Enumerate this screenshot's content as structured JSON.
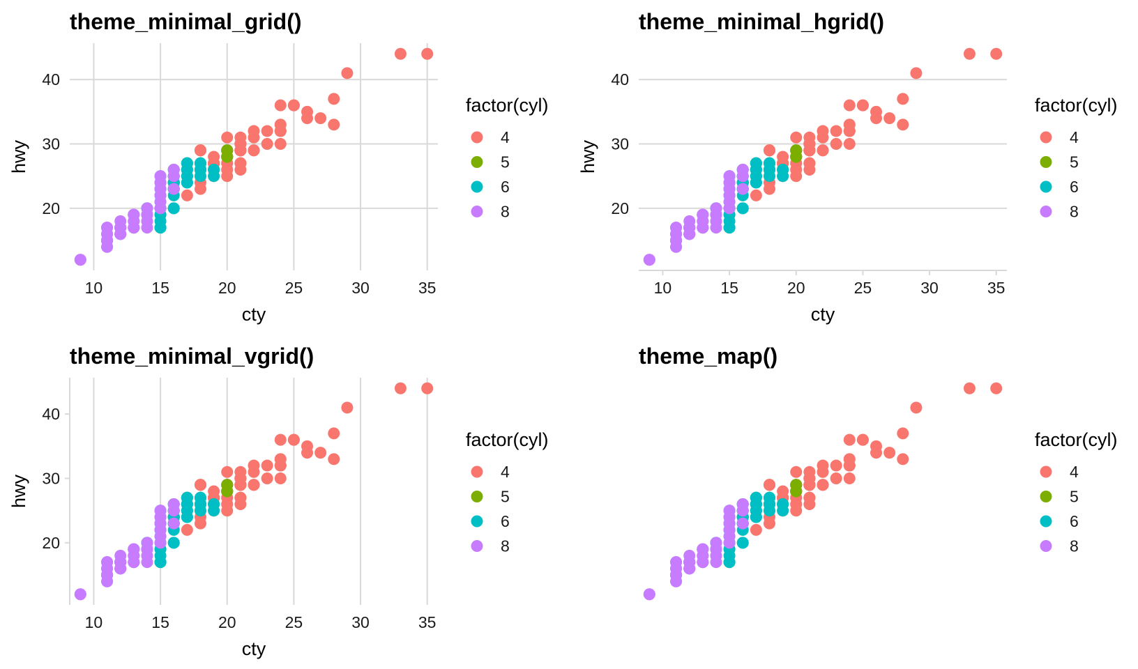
{
  "chart_data": [
    {
      "type": "scatter",
      "title": "theme_minimal_grid()",
      "xlabel": "cty",
      "ylabel": "hwy",
      "xlim": [
        8.2,
        35.8
      ],
      "ylim": [
        10.35,
        45.65
      ],
      "x_ticks": [
        "10",
        "15",
        "20",
        "25",
        "30",
        "35"
      ],
      "y_ticks": [
        "20",
        "30",
        "40"
      ],
      "grid": "both",
      "axis_lines": "none",
      "legend": {
        "title": "factor(cyl)",
        "position": "right"
      },
      "dataset": "mpg"
    },
    {
      "type": "scatter",
      "title": "theme_minimal_hgrid()",
      "xlabel": "cty",
      "ylabel": "hwy",
      "xlim": [
        8.2,
        35.8
      ],
      "ylim": [
        10.35,
        45.65
      ],
      "x_ticks": [
        "10",
        "15",
        "20",
        "25",
        "30",
        "35"
      ],
      "y_ticks": [
        "20",
        "30",
        "40"
      ],
      "grid": "horizontal",
      "axis_lines": "x",
      "legend": {
        "title": "factor(cyl)",
        "position": "right"
      },
      "dataset": "mpg"
    },
    {
      "type": "scatter",
      "title": "theme_minimal_vgrid()",
      "xlabel": "cty",
      "ylabel": "hwy",
      "xlim": [
        8.2,
        35.8
      ],
      "ylim": [
        10.35,
        45.65
      ],
      "x_ticks": [
        "10",
        "15",
        "20",
        "25",
        "30",
        "35"
      ],
      "y_ticks": [
        "20",
        "30",
        "40"
      ],
      "grid": "vertical",
      "axis_lines": "y",
      "legend": {
        "title": "factor(cyl)",
        "position": "right"
      },
      "dataset": "mpg"
    },
    {
      "type": "scatter",
      "title": "theme_map()",
      "xlabel": "",
      "ylabel": "",
      "xlim": [
        8.2,
        35.8
      ],
      "ylim": [
        10.35,
        45.65
      ],
      "x_ticks": [],
      "y_ticks": [],
      "grid": "none",
      "axis_lines": "none",
      "legend": {
        "title": "factor(cyl)",
        "position": "right"
      },
      "dataset": "mpg"
    }
  ],
  "legend_items": [
    {
      "label": "4",
      "color": "#F8766D"
    },
    {
      "label": "5",
      "color": "#7CAE00"
    },
    {
      "label": "6",
      "color": "#00BFC4"
    },
    {
      "label": "8",
      "color": "#C77CFF"
    }
  ],
  "mpg": {
    "series": [
      {
        "name": "4",
        "color": "#F8766D",
        "points": [
          [
            18,
            29
          ],
          [
            21,
            29
          ],
          [
            20,
            31
          ],
          [
            21,
            30
          ],
          [
            18,
            26
          ],
          [
            16,
            25
          ],
          [
            20,
            28
          ],
          [
            19,
            27
          ],
          [
            19,
            27
          ],
          [
            22,
            29
          ],
          [
            21,
            30
          ],
          [
            20,
            29
          ],
          [
            21,
            29
          ],
          [
            20,
            28
          ],
          [
            19,
            26
          ],
          [
            18,
            25
          ],
          [
            21,
            27
          ],
          [
            21,
            27
          ],
          [
            21,
            29
          ],
          [
            21,
            30
          ],
          [
            20,
            29
          ],
          [
            18,
            26
          ],
          [
            18,
            29
          ],
          [
            21,
            29
          ],
          [
            21,
            29
          ],
          [
            24,
            36
          ],
          [
            25,
            36
          ],
          [
            28,
            33
          ],
          [
            27,
            34
          ],
          [
            24,
            32
          ],
          [
            21,
            26
          ],
          [
            21,
            29
          ],
          [
            21,
            29
          ],
          [
            24,
            30
          ],
          [
            26,
            35
          ],
          [
            24,
            33
          ],
          [
            26,
            34
          ],
          [
            28,
            37
          ],
          [
            29,
            41
          ],
          [
            33,
            44
          ],
          [
            35,
            44
          ],
          [
            24,
            32
          ],
          [
            22,
            29
          ],
          [
            21,
            29
          ],
          [
            21,
            29
          ],
          [
            21,
            30
          ],
          [
            24,
            33
          ],
          [
            23,
            32
          ],
          [
            23,
            30
          ],
          [
            24,
            32
          ],
          [
            20,
            26
          ],
          [
            20,
            27
          ],
          [
            20,
            29
          ],
          [
            20,
            26
          ],
          [
            18,
            24
          ],
          [
            19,
            26
          ],
          [
            19,
            27
          ],
          [
            19,
            26
          ],
          [
            21,
            27
          ],
          [
            19,
            26
          ],
          [
            19,
            25
          ],
          [
            18,
            26
          ],
          [
            21,
            29
          ],
          [
            19,
            27
          ],
          [
            25,
            36
          ],
          [
            22,
            29
          ],
          [
            21,
            30
          ],
          [
            21,
            31
          ],
          [
            18,
            29
          ],
          [
            19,
            28
          ],
          [
            22,
            31
          ],
          [
            18,
            27
          ],
          [
            18,
            29
          ],
          [
            22,
            32
          ],
          [
            21,
            29
          ],
          [
            21,
            30
          ],
          [
            20,
            28
          ],
          [
            15,
            20
          ],
          [
            17,
            22
          ],
          [
            20,
            28
          ],
          [
            19,
            27
          ],
          [
            15,
            20
          ],
          [
            20,
            25
          ],
          [
            20,
            28
          ],
          [
            20,
            27
          ],
          [
            18,
            23
          ],
          [
            19,
            26
          ],
          [
            19,
            26
          ],
          [
            19,
            27
          ],
          [
            20,
            29
          ],
          [
            21,
            29
          ]
        ]
      },
      {
        "name": "5",
        "color": "#7CAE00",
        "points": [
          [
            20,
            28
          ],
          [
            20,
            29
          ],
          [
            20,
            28
          ],
          [
            20,
            29
          ]
        ]
      },
      {
        "name": "6",
        "color": "#00BFC4",
        "points": [
          [
            16,
            26
          ],
          [
            17,
            25
          ],
          [
            15,
            23
          ],
          [
            16,
            24
          ],
          [
            15,
            25
          ],
          [
            15,
            21
          ],
          [
            15,
            22
          ],
          [
            16,
            23
          ],
          [
            17,
            26
          ],
          [
            17,
            25
          ],
          [
            17,
            27
          ],
          [
            18,
            26
          ],
          [
            19,
            26
          ],
          [
            19,
            25
          ],
          [
            18,
            27
          ],
          [
            16,
            26
          ],
          [
            18,
            26
          ],
          [
            16,
            25
          ],
          [
            16,
            24
          ],
          [
            17,
            26
          ],
          [
            16,
            20
          ],
          [
            15,
            20
          ],
          [
            14,
            20
          ],
          [
            15,
            19
          ],
          [
            15,
            17
          ],
          [
            15,
            17
          ],
          [
            15,
            18
          ],
          [
            14,
            20
          ],
          [
            16,
            23
          ],
          [
            16,
            24
          ],
          [
            17,
            24
          ],
          [
            17,
            24
          ],
          [
            18,
            26
          ],
          [
            16,
            25
          ],
          [
            16,
            22
          ],
          [
            16,
            25
          ],
          [
            17,
            27
          ],
          [
            17,
            26
          ],
          [
            18,
            27
          ],
          [
            19,
            26
          ],
          [
            18,
            26
          ],
          [
            17,
            26
          ],
          [
            16,
            23
          ],
          [
            16,
            24
          ],
          [
            18,
            26
          ],
          [
            16,
            24
          ],
          [
            17,
            27
          ],
          [
            17,
            25
          ],
          [
            16,
            24
          ],
          [
            17,
            25
          ],
          [
            16,
            24
          ],
          [
            18,
            27
          ],
          [
            18,
            26
          ],
          [
            16,
            24
          ],
          [
            17,
            26
          ],
          [
            17,
            24
          ],
          [
            16,
            23
          ],
          [
            15,
            22
          ],
          [
            16,
            24
          ],
          [
            17,
            25
          ],
          [
            18,
            26
          ],
          [
            17,
            27
          ],
          [
            15,
            24
          ],
          [
            15,
            22
          ],
          [
            15,
            23
          ],
          [
            16,
            24
          ],
          [
            18,
            25
          ],
          [
            17,
            26
          ],
          [
            16,
            24
          ],
          [
            15,
            23
          ],
          [
            16,
            26
          ],
          [
            16,
            23
          ],
          [
            17,
            27
          ],
          [
            17,
            26
          ],
          [
            15,
            17
          ],
          [
            16,
            20
          ],
          [
            15,
            19
          ],
          [
            14,
            19
          ]
        ]
      },
      {
        "name": "8",
        "color": "#C77CFF",
        "points": [
          [
            16,
            26
          ],
          [
            15,
            25
          ],
          [
            16,
            26
          ],
          [
            15,
            23
          ],
          [
            11,
            15
          ],
          [
            11,
            14
          ],
          [
            11,
            15
          ],
          [
            12,
            16
          ],
          [
            9,
            12
          ],
          [
            11,
            17
          ],
          [
            11,
            15
          ],
          [
            12,
            17
          ],
          [
            13,
            17
          ],
          [
            12,
            17
          ],
          [
            14,
            19
          ],
          [
            13,
            19
          ],
          [
            14,
            19
          ],
          [
            13,
            17
          ],
          [
            12,
            17
          ],
          [
            14,
            19
          ],
          [
            13,
            17
          ],
          [
            12,
            16
          ],
          [
            12,
            16
          ],
          [
            15,
            22
          ],
          [
            14,
            17
          ],
          [
            11,
            15
          ],
          [
            11,
            16
          ],
          [
            11,
            17
          ],
          [
            11,
            15
          ],
          [
            12,
            17
          ],
          [
            13,
            17
          ],
          [
            12,
            16
          ],
          [
            13,
            19
          ],
          [
            13,
            19
          ],
          [
            11,
            15
          ],
          [
            14,
            18
          ],
          [
            13,
            19
          ],
          [
            11,
            14
          ],
          [
            12,
            17
          ],
          [
            11,
            15
          ],
          [
            11,
            15
          ],
          [
            14,
            19
          ],
          [
            15,
            24
          ],
          [
            14,
            20
          ],
          [
            15,
            25
          ],
          [
            15,
            23
          ],
          [
            15,
            24
          ],
          [
            15,
            24
          ],
          [
            16,
            25
          ],
          [
            15,
            22
          ],
          [
            15,
            21
          ],
          [
            16,
            23
          ],
          [
            13,
            19
          ],
          [
            15,
            20
          ],
          [
            12,
            17
          ],
          [
            14,
            19
          ],
          [
            14,
            18
          ],
          [
            14,
            19
          ],
          [
            13,
            18
          ],
          [
            14,
            19
          ],
          [
            11,
            16
          ],
          [
            14,
            19
          ],
          [
            13,
            17
          ],
          [
            11,
            15
          ],
          [
            12,
            18
          ],
          [
            12,
            17
          ],
          [
            13,
            19
          ],
          [
            13,
            18
          ],
          [
            12,
            17
          ],
          [
            13,
            18
          ],
          [
            12,
            16
          ],
          [
            11,
            16
          ],
          [
            9,
            12
          ],
          [
            11,
            17
          ]
        ]
      }
    ]
  }
}
